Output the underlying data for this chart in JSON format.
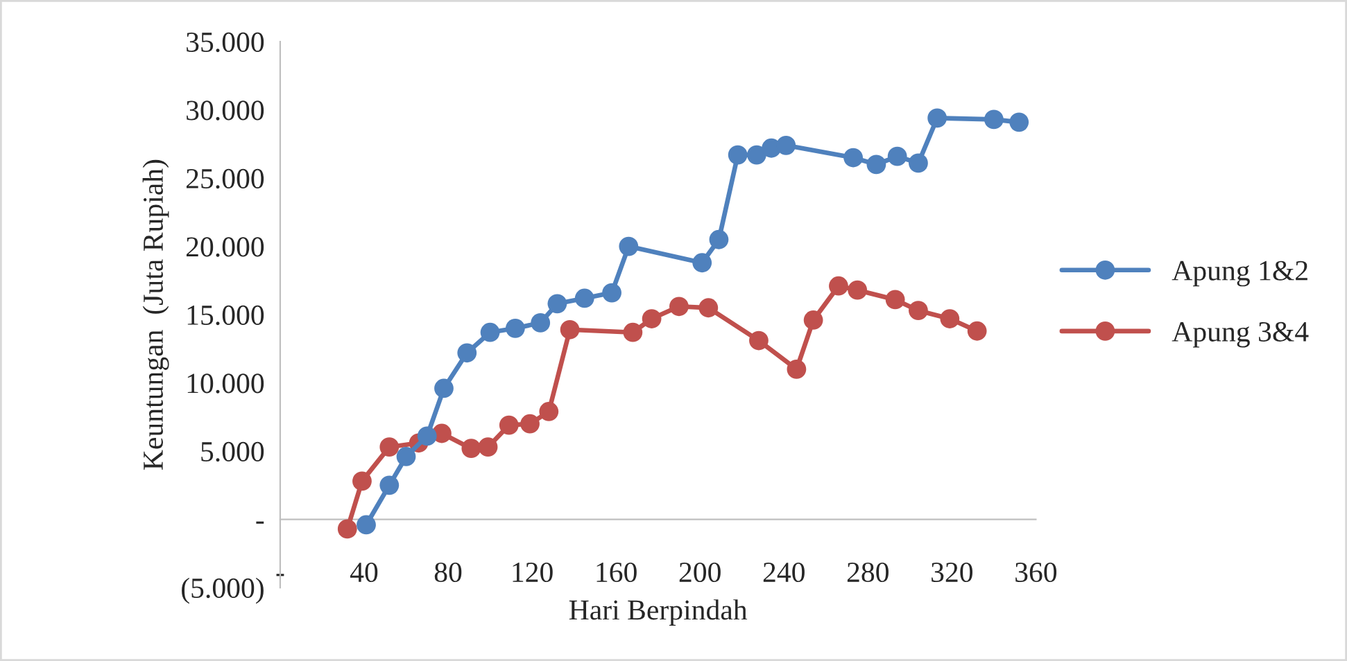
{
  "chart_data": {
    "type": "line",
    "xlabel": "Hari Berpindah",
    "ylabel": "Keuntungan  (Juta Rupiah)",
    "xlim": [
      0,
      360
    ],
    "xticks": [
      {
        "value": 0,
        "label": "-"
      },
      40,
      80,
      120,
      160,
      200,
      240,
      280,
      320,
      360
    ],
    "ylim": [
      -5000,
      35000
    ],
    "yticks": [
      {
        "value": -5000,
        "label": "(5.000)"
      },
      {
        "value": 0,
        "label": "-"
      },
      {
        "value": 5000,
        "label": "5.000"
      },
      {
        "value": 10000,
        "label": "10.000"
      },
      {
        "value": 15000,
        "label": "15.000"
      },
      {
        "value": 20000,
        "label": "20.000"
      },
      {
        "value": 25000,
        "label": "25.000"
      },
      {
        "value": 30000,
        "label": "30.000"
      },
      {
        "value": 35000,
        "label": "35.000"
      }
    ],
    "grid": false,
    "legend": "right",
    "marker": "circle",
    "line_style": "solid",
    "series": [
      {
        "name": "Apung 1&2",
        "color": "#4f81bd",
        "x": [
          41,
          52,
          60,
          70,
          78,
          89,
          100,
          112,
          124,
          132,
          145,
          158,
          166,
          201,
          209,
          218,
          227,
          234,
          241,
          273,
          284,
          294,
          304,
          313,
          340,
          352
        ],
        "values": [
          -400,
          2500,
          4600,
          6100,
          9600,
          12200,
          13700,
          14000,
          14400,
          15800,
          16200,
          16600,
          20000,
          18800,
          20500,
          26700,
          26700,
          27200,
          27400,
          26500,
          26000,
          26600,
          26100,
          29400,
          29300,
          29100
        ]
      },
      {
        "name": "Apung 3&4",
        "color": "#c0504d",
        "x": [
          32,
          39,
          52,
          66,
          77,
          91,
          99,
          109,
          119,
          128,
          138,
          168,
          177,
          190,
          204,
          228,
          246,
          254,
          266,
          275,
          293,
          304,
          319,
          332
        ],
        "values": [
          -700,
          2800,
          5300,
          5600,
          6300,
          5200,
          5300,
          6900,
          7000,
          7900,
          13900,
          13700,
          14700,
          15600,
          15500,
          13100,
          11000,
          14600,
          17100,
          16800,
          16100,
          15300,
          14700,
          13800
        ]
      }
    ]
  }
}
